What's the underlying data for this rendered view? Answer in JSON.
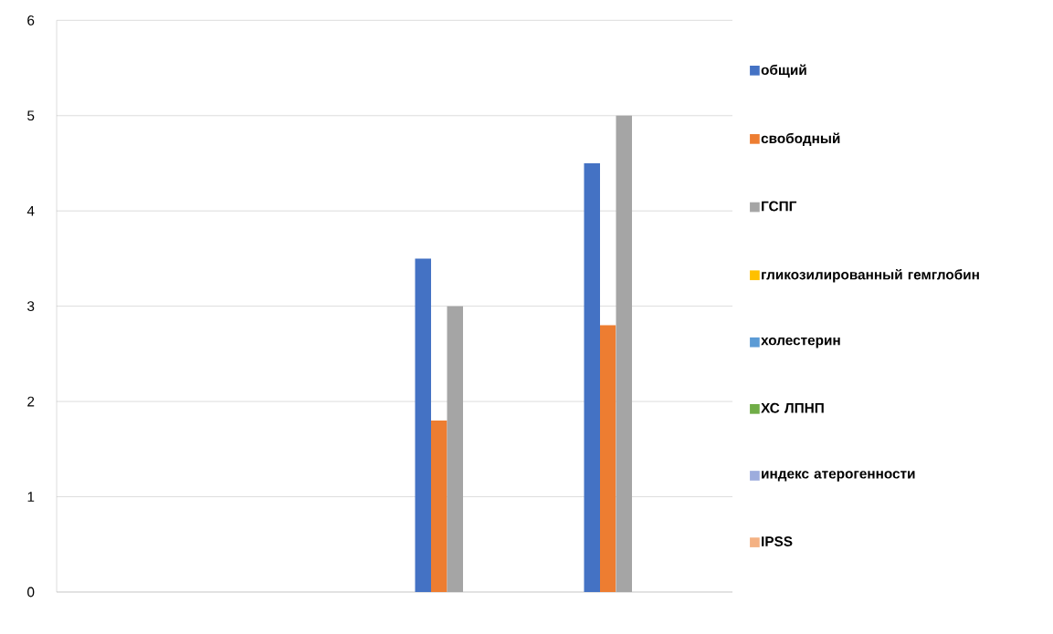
{
  "chart_data": {
    "type": "bar",
    "categories": [
      null,
      null,
      null,
      null
    ],
    "series": [
      {
        "name": "общий",
        "color": "#4472c4",
        "values": [
          null,
          null,
          3.5,
          4.5
        ]
      },
      {
        "name": "свободный",
        "color": "#ed7d31",
        "values": [
          null,
          null,
          1.8,
          2.8
        ]
      },
      {
        "name": "ГСПГ",
        "color": "#a5a5a5",
        "values": [
          null,
          null,
          3,
          5
        ]
      },
      {
        "name": "гликозилированный гемглобин",
        "color": "#ffc000",
        "values": [
          null,
          null,
          null,
          null
        ]
      },
      {
        "name": "холестерин",
        "color": "#5b9bd5",
        "values": [
          null,
          null,
          null,
          null
        ]
      },
      {
        "name": "ХС ЛПНП",
        "color": "#70ad47",
        "values": [
          null,
          null,
          null,
          null
        ]
      },
      {
        "name": "индекс атерогенности",
        "color": "#9dacdd",
        "values": [
          null,
          null,
          null,
          null
        ]
      },
      {
        "name": "IPSS",
        "color": "#f4b183",
        "values": [
          null,
          null,
          null,
          null
        ]
      }
    ],
    "ylim": [
      0,
      6
    ],
    "yticks": [
      0,
      1,
      2,
      3,
      4,
      5,
      6
    ],
    "grid": "y",
    "legend": "right"
  }
}
